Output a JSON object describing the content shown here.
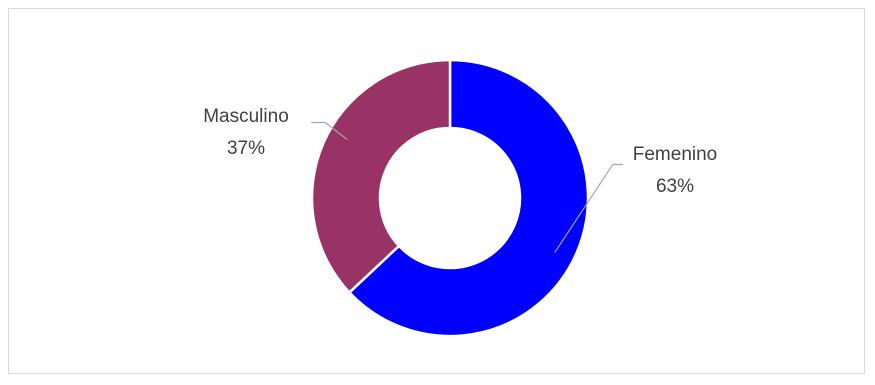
{
  "chart_data": {
    "type": "pie",
    "variant": "doughnut",
    "start_angle_deg": 0,
    "direction": "clockwise",
    "slices": [
      {
        "name": "Femenino",
        "value": 63,
        "label": "Femenino",
        "percent_label": "63%",
        "color": "#0000ff"
      },
      {
        "name": "Masculino",
        "value": 37,
        "label": "Masculino",
        "percent_label": "37%",
        "color": "#993366"
      }
    ],
    "legend": "none",
    "data_labels": "outside-with-leader-lines"
  }
}
